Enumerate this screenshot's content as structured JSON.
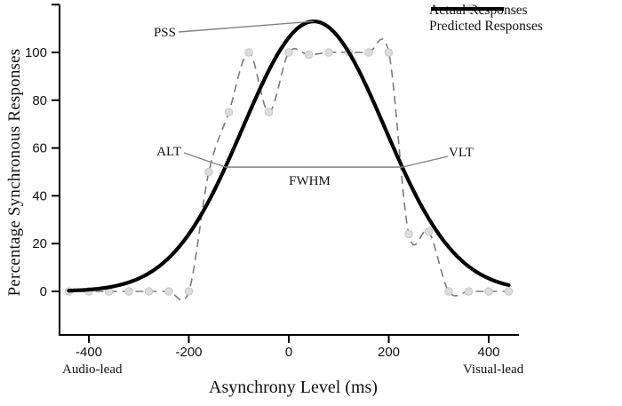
{
  "chart_data": {
    "type": "line",
    "title": "",
    "xlabel": "Asynchrony Level (ms)",
    "ylabel": "Percentage Synchronous Responses",
    "x_ticks": [
      -400,
      -200,
      0,
      200,
      400
    ],
    "y_ticks": [
      0,
      20,
      40,
      60,
      80,
      100
    ],
    "y_axis_top_unlabeled_tick": 120,
    "xlim": [
      -460,
      460
    ],
    "ylim": [
      -18,
      120
    ],
    "grid": false,
    "x_direction_labels": {
      "left": "Audio-lead",
      "right": "Visual-lead"
    },
    "legend": {
      "position": "top-right",
      "entries": [
        {
          "label": "Actual Responses",
          "style": "dashed-gray-marker"
        },
        {
          "label": "Predicted Responses",
          "style": "solid-black-thick"
        }
      ]
    },
    "series": [
      {
        "name": "Actual Responses",
        "render": "dashed-spline-with-markers",
        "points": [
          [
            -440,
            0
          ],
          [
            -400,
            0
          ],
          [
            -360,
            0
          ],
          [
            -320,
            0
          ],
          [
            -280,
            0
          ],
          [
            -240,
            0
          ],
          [
            -200,
            0
          ],
          [
            -160,
            50
          ],
          [
            -120,
            75
          ],
          [
            -80,
            100
          ],
          [
            -40,
            75
          ],
          [
            0,
            100
          ],
          [
            40,
            99
          ],
          [
            80,
            100
          ],
          [
            120,
            100
          ],
          [
            160,
            100
          ],
          [
            200,
            100
          ],
          [
            240,
            24
          ],
          [
            280,
            25
          ],
          [
            320,
            0
          ],
          [
            360,
            0
          ],
          [
            400,
            0
          ],
          [
            440,
            0
          ]
        ]
      },
      {
        "name": "Predicted Responses",
        "render": "gaussian-solid-thick",
        "amplitude": 113,
        "mean_ms": 50,
        "sigma_ms": 142,
        "x_range": [
          -440,
          440
        ]
      }
    ],
    "annotations": {
      "pss": {
        "label": "PSS",
        "points_to_peak": {
          "x": 50,
          "y": 113
        }
      },
      "alt": {
        "label": "ALT"
      },
      "vlt": {
        "label": "VLT"
      },
      "fwhm": {
        "label": "FWHM",
        "line_y": 52
      }
    },
    "colors": {
      "predicted": "#000000",
      "actual_line": "#7a7a7a",
      "marker_fill": "#dcdcdc",
      "marker_edge": "#c6c6c6",
      "annotation_line": "#828282",
      "axis": "#000000",
      "text": "#111111"
    }
  }
}
